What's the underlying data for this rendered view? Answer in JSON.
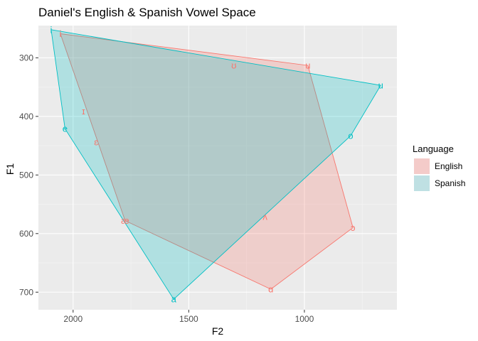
{
  "chart_data": {
    "type": "scatter",
    "title": "Daniel's English & Spanish Vowel Space",
    "xlabel": "F2",
    "ylabel": "F1",
    "xlim": [
      2150,
      600
    ],
    "ylim": [
      730,
      245
    ],
    "x_reversed": true,
    "y_reversed": true,
    "x_ticks": [
      2000,
      1500,
      1000
    ],
    "y_ticks": [
      300,
      400,
      500,
      600,
      700
    ],
    "grid": true,
    "legend": {
      "title": "Language",
      "position": "right"
    },
    "series": [
      {
        "name": "English",
        "color": "#F8766D",
        "fill": "#F4CBC9",
        "hull": [
          "i",
          "u",
          "ɔ",
          "ɑ",
          "æ"
        ],
        "points": [
          {
            "label": "i",
            "x": 2055,
            "y": 259
          },
          {
            "label": "ɪ",
            "x": 1955,
            "y": 391
          },
          {
            "label": "ɛ",
            "x": 1900,
            "y": 444
          },
          {
            "label": "æ",
            "x": 1775,
            "y": 578
          },
          {
            "label": "ʊ",
            "x": 1305,
            "y": 313
          },
          {
            "label": "u",
            "x": 985,
            "y": 313
          },
          {
            "label": "ʌ",
            "x": 1170,
            "y": 571
          },
          {
            "label": "ɔ",
            "x": 790,
            "y": 590
          },
          {
            "label": "ɑ",
            "x": 1145,
            "y": 695
          }
        ]
      },
      {
        "name": "Spanish",
        "color": "#00BFC4",
        "fill": "#BFE0E3",
        "hull": [
          "i",
          "u",
          "o",
          "a",
          "e"
        ],
        "points": [
          {
            "label": "i",
            "x": 2095,
            "y": 252
          },
          {
            "label": "e",
            "x": 2035,
            "y": 421
          },
          {
            "label": "a",
            "x": 1565,
            "y": 712
          },
          {
            "label": "o",
            "x": 800,
            "y": 433
          },
          {
            "label": "u",
            "x": 670,
            "y": 347
          }
        ]
      }
    ]
  }
}
